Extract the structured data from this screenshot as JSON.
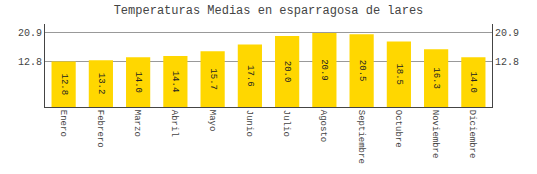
{
  "chart_data": {
    "type": "bar",
    "title": "Temperaturas Medias en esparragosa de lares",
    "categories": [
      "Enero",
      "Febrero",
      "Marzo",
      "Abril",
      "Mayo",
      "Junio",
      "Julio",
      "Agosto",
      "Septiembre",
      "Octubre",
      "Noviembre",
      "Diciembre"
    ],
    "values": [
      12.8,
      13.2,
      14.0,
      14.4,
      15.7,
      17.6,
      20.0,
      20.9,
      20.5,
      18.5,
      16.3,
      14.0
    ],
    "value_labels": [
      "12.8",
      "13.2",
      "14.0",
      "14.4",
      "15.7",
      "17.6",
      "20.0",
      "20.9",
      "20.5",
      "18.5",
      "16.3",
      "14.0"
    ],
    "color": "#FFD700",
    "ylim": [
      0,
      23.408
    ],
    "yticks": [
      12.8,
      20.9
    ],
    "y2lim": [
      0,
      23.408
    ],
    "y2ticks": [
      12.8,
      20.9
    ],
    "grid": true,
    "data_labels": true
  }
}
